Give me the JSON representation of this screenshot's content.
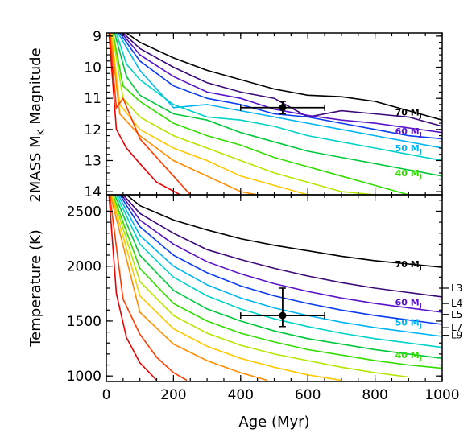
{
  "chart_data": [
    {
      "type": "line",
      "panel": "top",
      "ylabel_main": "2MASS M",
      "ylabel_sub": "K",
      "ylabel_tail": " Magnitude",
      "ylim": [
        14.1,
        8.9
      ],
      "xlim": [
        0,
        1000
      ],
      "yticks": [
        "9",
        "10",
        "11",
        "12",
        "13",
        "14"
      ],
      "ytick_values": [
        9,
        10,
        11,
        12,
        13,
        14
      ],
      "series": [
        {
          "color": "#000000",
          "x": [
            60,
            100,
            200,
            300,
            400,
            500,
            600,
            700,
            800,
            900,
            1000
          ],
          "y": [
            8.9,
            9.2,
            9.7,
            10.1,
            10.4,
            10.7,
            10.9,
            10.95,
            11.1,
            11.4,
            11.7
          ]
        },
        {
          "color": "#3c0a78",
          "x": [
            50,
            100,
            200,
            300,
            400,
            500,
            600,
            700,
            800,
            900,
            1000
          ],
          "y": [
            8.9,
            9.4,
            10.0,
            10.5,
            10.8,
            11.0,
            11.6,
            11.4,
            11.5,
            11.6,
            11.9
          ]
        },
        {
          "color": "#5a14c8",
          "x": [
            45,
            100,
            200,
            300,
            400,
            500,
            600,
            700,
            800,
            900,
            1000
          ],
          "y": [
            8.9,
            9.6,
            10.3,
            10.8,
            11.0,
            11.35,
            11.55,
            11.7,
            11.8,
            11.95,
            12.1
          ]
        },
        {
          "color": "#0a3cf0",
          "x": [
            40,
            100,
            200,
            300,
            400,
            500,
            600,
            700,
            800,
            900,
            1000
          ],
          "y": [
            8.9,
            9.8,
            10.6,
            11.0,
            11.2,
            11.5,
            11.6,
            11.8,
            12.0,
            12.2,
            12.3
          ]
        },
        {
          "color": "#00b4f0",
          "x": [
            35,
            100,
            200,
            300,
            400,
            500,
            600,
            700,
            800,
            900,
            1000
          ],
          "y": [
            8.9,
            10.1,
            11.3,
            11.2,
            11.4,
            11.6,
            11.8,
            12.0,
            12.2,
            12.4,
            12.6
          ]
        },
        {
          "color": "#00d2c8",
          "x": [
            30,
            60,
            100,
            200,
            300,
            400,
            500,
            600,
            700,
            800,
            900,
            1000
          ],
          "y": [
            8.9,
            9.9,
            10.4,
            11.2,
            11.6,
            11.7,
            11.9,
            12.2,
            12.4,
            12.6,
            12.8,
            13.0
          ]
        },
        {
          "color": "#00c83c",
          "x": [
            25,
            60,
            100,
            200,
            300,
            400,
            500,
            600,
            700,
            800,
            900,
            1000
          ],
          "y": [
            8.9,
            10.3,
            10.9,
            11.5,
            11.7,
            12.1,
            12.4,
            12.7,
            12.9,
            13.1,
            13.3,
            13.5
          ]
        },
        {
          "color": "#32dc00",
          "x": [
            20,
            50,
            100,
            200,
            300,
            400,
            500,
            600,
            700,
            800,
            900
          ],
          "y": [
            8.9,
            10.6,
            11.1,
            11.8,
            12.2,
            12.5,
            12.9,
            13.2,
            13.5,
            13.8,
            14.1
          ]
        },
        {
          "color": "#b4e600",
          "x": [
            18,
            50,
            100,
            200,
            300,
            400,
            500,
            600,
            700,
            800
          ],
          "y": [
            8.9,
            11.0,
            11.6,
            12.2,
            12.6,
            13.0,
            13.4,
            13.7,
            14.0,
            14.1
          ]
        },
        {
          "color": "#ffc800",
          "x": [
            15,
            40,
            100,
            200,
            300,
            400,
            500,
            600,
            650
          ],
          "y": [
            8.9,
            11.2,
            12.0,
            12.6,
            13.0,
            13.5,
            13.8,
            14.1,
            14.1
          ]
        },
        {
          "color": "#ff8c00",
          "x": [
            12,
            40,
            100,
            200,
            300,
            400,
            450
          ],
          "y": [
            8.9,
            11.5,
            12.2,
            13.0,
            13.5,
            14.0,
            14.1
          ]
        },
        {
          "color": "#ff3c00",
          "x": [
            10,
            30,
            50,
            100,
            200,
            250
          ],
          "y": [
            8.9,
            11.3,
            11.0,
            12.3,
            13.5,
            14.1
          ]
        },
        {
          "color": "#e60000",
          "x": [
            8,
            30,
            60,
            100,
            150,
            220
          ],
          "y": [
            8.9,
            12.0,
            12.6,
            13.1,
            13.7,
            14.1
          ]
        }
      ],
      "mass_labels": [
        {
          "text": "70 M",
          "sub": "J",
          "color": "#000000",
          "x": 860,
          "y": 11.45
        },
        {
          "text": "60 M",
          "sub": "J",
          "color": "#5a14c8",
          "x": 860,
          "y": 12.05
        },
        {
          "text": "50 M",
          "sub": "J",
          "color": "#00b4f0",
          "x": 860,
          "y": 12.6
        },
        {
          "text": "40 M",
          "sub": "J",
          "color": "#32dc00",
          "x": 860,
          "y": 13.4
        }
      ],
      "point": {
        "x": 525,
        "y": 11.3,
        "xerr": [
          400,
          650
        ],
        "yerr": [
          11.1,
          11.5
        ]
      }
    },
    {
      "type": "line",
      "panel": "bottom",
      "xlabel": "Age (Myr)",
      "ylabel": "Temperature (K)",
      "ylim": [
        950,
        2650
      ],
      "xlim": [
        0,
        1000
      ],
      "xticks": [
        "0",
        "200",
        "400",
        "600",
        "800",
        "1000"
      ],
      "xtick_values": [
        0,
        200,
        400,
        600,
        800,
        1000
      ],
      "yticks": [
        "1000",
        "1500",
        "2000",
        "2500"
      ],
      "ytick_values": [
        1000,
        1500,
        2000,
        2500
      ],
      "series": [
        {
          "color": "#000000",
          "x": [
            60,
            100,
            200,
            300,
            400,
            500,
            600,
            700,
            800,
            900,
            1000
          ],
          "y": [
            2650,
            2550,
            2420,
            2330,
            2250,
            2190,
            2140,
            2090,
            2050,
            2020,
            1990
          ]
        },
        {
          "color": "#3c0a78",
          "x": [
            50,
            100,
            200,
            300,
            400,
            500,
            600,
            700,
            800,
            900,
            1000
          ],
          "y": [
            2650,
            2480,
            2300,
            2150,
            2060,
            1980,
            1910,
            1850,
            1800,
            1760,
            1720
          ]
        },
        {
          "color": "#5a14c8",
          "x": [
            45,
            100,
            200,
            300,
            400,
            500,
            600,
            700,
            800,
            900,
            1000
          ],
          "y": [
            2650,
            2420,
            2200,
            2040,
            1930,
            1840,
            1770,
            1710,
            1660,
            1620,
            1580
          ]
        },
        {
          "color": "#0a3cf0",
          "x": [
            40,
            100,
            200,
            300,
            400,
            500,
            600,
            700,
            800,
            900,
            1000
          ],
          "y": [
            2650,
            2360,
            2100,
            1940,
            1820,
            1730,
            1660,
            1600,
            1550,
            1510,
            1470
          ]
        },
        {
          "color": "#00b4f0",
          "x": [
            35,
            100,
            200,
            300,
            400,
            500,
            600,
            700,
            800,
            900,
            1000
          ],
          "y": [
            2650,
            2280,
            2000,
            1830,
            1710,
            1620,
            1550,
            1490,
            1440,
            1400,
            1360
          ]
        },
        {
          "color": "#00d2c8",
          "x": [
            30,
            100,
            200,
            300,
            400,
            500,
            600,
            700,
            800,
            900,
            1000
          ],
          "y": [
            2650,
            2200,
            1900,
            1730,
            1610,
            1520,
            1450,
            1390,
            1340,
            1300,
            1260
          ]
        },
        {
          "color": "#00c83c",
          "x": [
            25,
            100,
            200,
            300,
            400,
            500,
            600,
            700,
            800,
            900,
            1000
          ],
          "y": [
            2650,
            2100,
            1780,
            1610,
            1500,
            1410,
            1340,
            1290,
            1240,
            1200,
            1160
          ]
        },
        {
          "color": "#32dc00",
          "x": [
            20,
            100,
            200,
            300,
            400,
            500,
            600,
            700,
            800,
            900,
            1000
          ],
          "y": [
            2650,
            1980,
            1660,
            1500,
            1390,
            1310,
            1240,
            1190,
            1140,
            1100,
            1070
          ]
        },
        {
          "color": "#b4e600",
          "x": [
            18,
            100,
            200,
            300,
            400,
            500,
            600,
            700,
            800,
            900
          ],
          "y": [
            2650,
            1860,
            1550,
            1390,
            1280,
            1200,
            1140,
            1080,
            1030,
            990
          ]
        },
        {
          "color": "#ffc800",
          "x": [
            15,
            100,
            200,
            300,
            400,
            500,
            600,
            700
          ],
          "y": [
            2650,
            1730,
            1430,
            1270,
            1160,
            1080,
            1010,
            960
          ]
        },
        {
          "color": "#ff8c00",
          "x": [
            12,
            100,
            200,
            300,
            400,
            480
          ],
          "y": [
            2650,
            1580,
            1290,
            1140,
            1030,
            960
          ]
        },
        {
          "color": "#ff3c00",
          "x": [
            10,
            50,
            100,
            150,
            200,
            240
          ],
          "y": [
            2650,
            1700,
            1380,
            1170,
            1030,
            960
          ]
        },
        {
          "color": "#e60000",
          "x": [
            8,
            30,
            60,
            100,
            150
          ],
          "y": [
            2650,
            1750,
            1350,
            1120,
            960
          ]
        }
      ],
      "mass_labels": [
        {
          "text": "70 M",
          "sub": "J",
          "color": "#000000",
          "x": 860,
          "y": 2020
        },
        {
          "text": "60 M",
          "sub": "J",
          "color": "#5a14c8",
          "x": 860,
          "y": 1670
        },
        {
          "text": "50 M",
          "sub": "J",
          "color": "#00b4f0",
          "x": 860,
          "y": 1490
        },
        {
          "text": "40 M",
          "sub": "J",
          "color": "#32dc00",
          "x": 860,
          "y": 1190
        }
      ],
      "spt_marks": [
        {
          "label": "L3",
          "y": 1800
        },
        {
          "label": "L4",
          "y": 1660
        },
        {
          "label": "L5",
          "y": 1560
        },
        {
          "label": "L7",
          "y": 1440
        },
        {
          "label": "L9",
          "y": 1370
        }
      ],
      "point": {
        "x": 525,
        "y": 1550,
        "xerr": [
          400,
          650
        ],
        "yerr": [
          1450,
          1800
        ]
      }
    }
  ]
}
